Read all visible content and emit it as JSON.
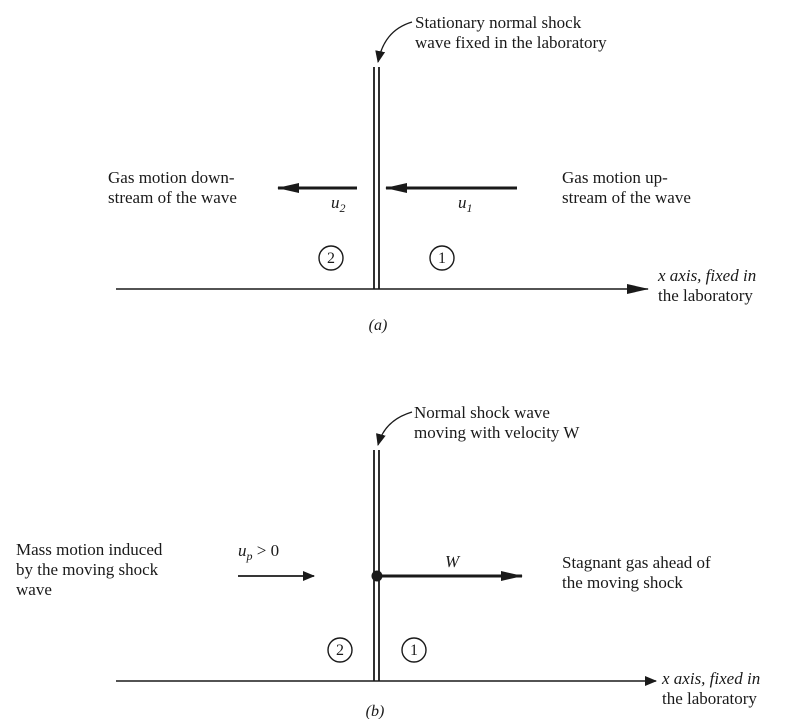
{
  "panel_a": {
    "shock_label_line1": "Stationary normal shock",
    "shock_label_line2": "wave fixed in the laboratory",
    "left_label_line1": "Gas motion down-",
    "left_label_line2": "stream of the wave",
    "right_label_line1": "Gas motion up-",
    "right_label_line2": "stream of the wave",
    "u2_symbol": "u",
    "u2_subscript": "2",
    "u1_symbol": "u",
    "u1_subscript": "1",
    "region_left": "2",
    "region_right": "1",
    "axis_label_line1": "x axis, fixed in",
    "axis_label_line2": "the laboratory",
    "caption": "(a)"
  },
  "panel_b": {
    "shock_label_line1": "Normal shock wave",
    "shock_label_line2": "moving with velocity W",
    "left_label_line1": "Mass motion induced",
    "left_label_line2": "by the moving shock",
    "left_label_line3": "wave",
    "up_symbol": "u",
    "up_subscript": "p",
    "up_relation": " > 0",
    "w_symbol": "W",
    "right_label_line1": "Stagnant gas ahead of",
    "right_label_line2": "the moving shock",
    "region_left": "2",
    "region_right": "1",
    "axis_label_line1": "x axis, fixed in",
    "axis_label_line2": "the laboratory",
    "caption": "(b)"
  }
}
